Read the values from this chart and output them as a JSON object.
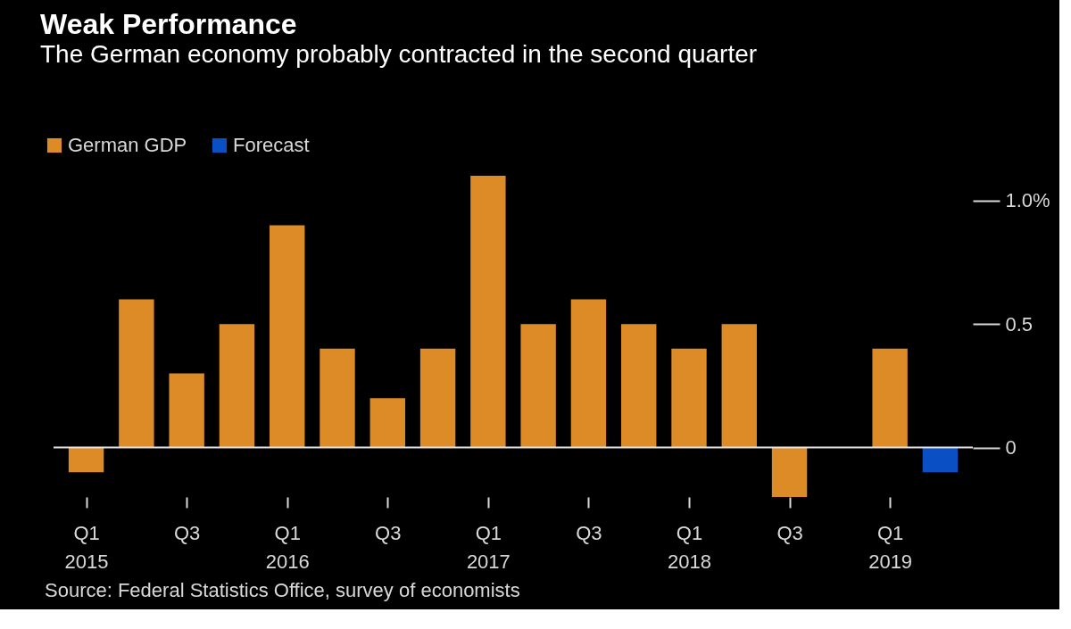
{
  "chart_data": {
    "type": "bar",
    "title": "Weak Performance",
    "subtitle": "The German economy probably contracted in the second quarter",
    "categories": [
      "Q1 2015",
      null,
      "Q3",
      null,
      "Q1 2016",
      null,
      "Q3",
      null,
      "Q1 2017",
      null,
      "Q3",
      null,
      "Q1 2018",
      null,
      "Q3",
      null,
      "Q1 2019",
      null
    ],
    "series": [
      {
        "name": "German GDP",
        "color": "#dc8b26",
        "values": [
          -0.1,
          0.6,
          0.3,
          0.5,
          0.9,
          0.4,
          0.2,
          0.4,
          1.1,
          0.5,
          0.6,
          0.5,
          0.4,
          0.5,
          -0.2,
          0.0,
          0.4,
          null
        ]
      },
      {
        "name": "Forecast",
        "color": "#0a50c4",
        "values": [
          null,
          null,
          null,
          null,
          null,
          null,
          null,
          null,
          null,
          null,
          null,
          null,
          null,
          null,
          null,
          null,
          null,
          -0.1
        ]
      }
    ],
    "ylim": [
      -0.2,
      1.1
    ],
    "yticks": [
      0,
      0.5,
      {
        "value": 1.0,
        "label": "1.0%"
      }
    ],
    "ref_lines": [
      {
        "axis": "y",
        "value": 0,
        "color": "#e6e6e6"
      }
    ],
    "legend": "top left",
    "grid": false,
    "annotations": [
      "Source: Federal Statistics Office, survey of economists"
    ]
  }
}
